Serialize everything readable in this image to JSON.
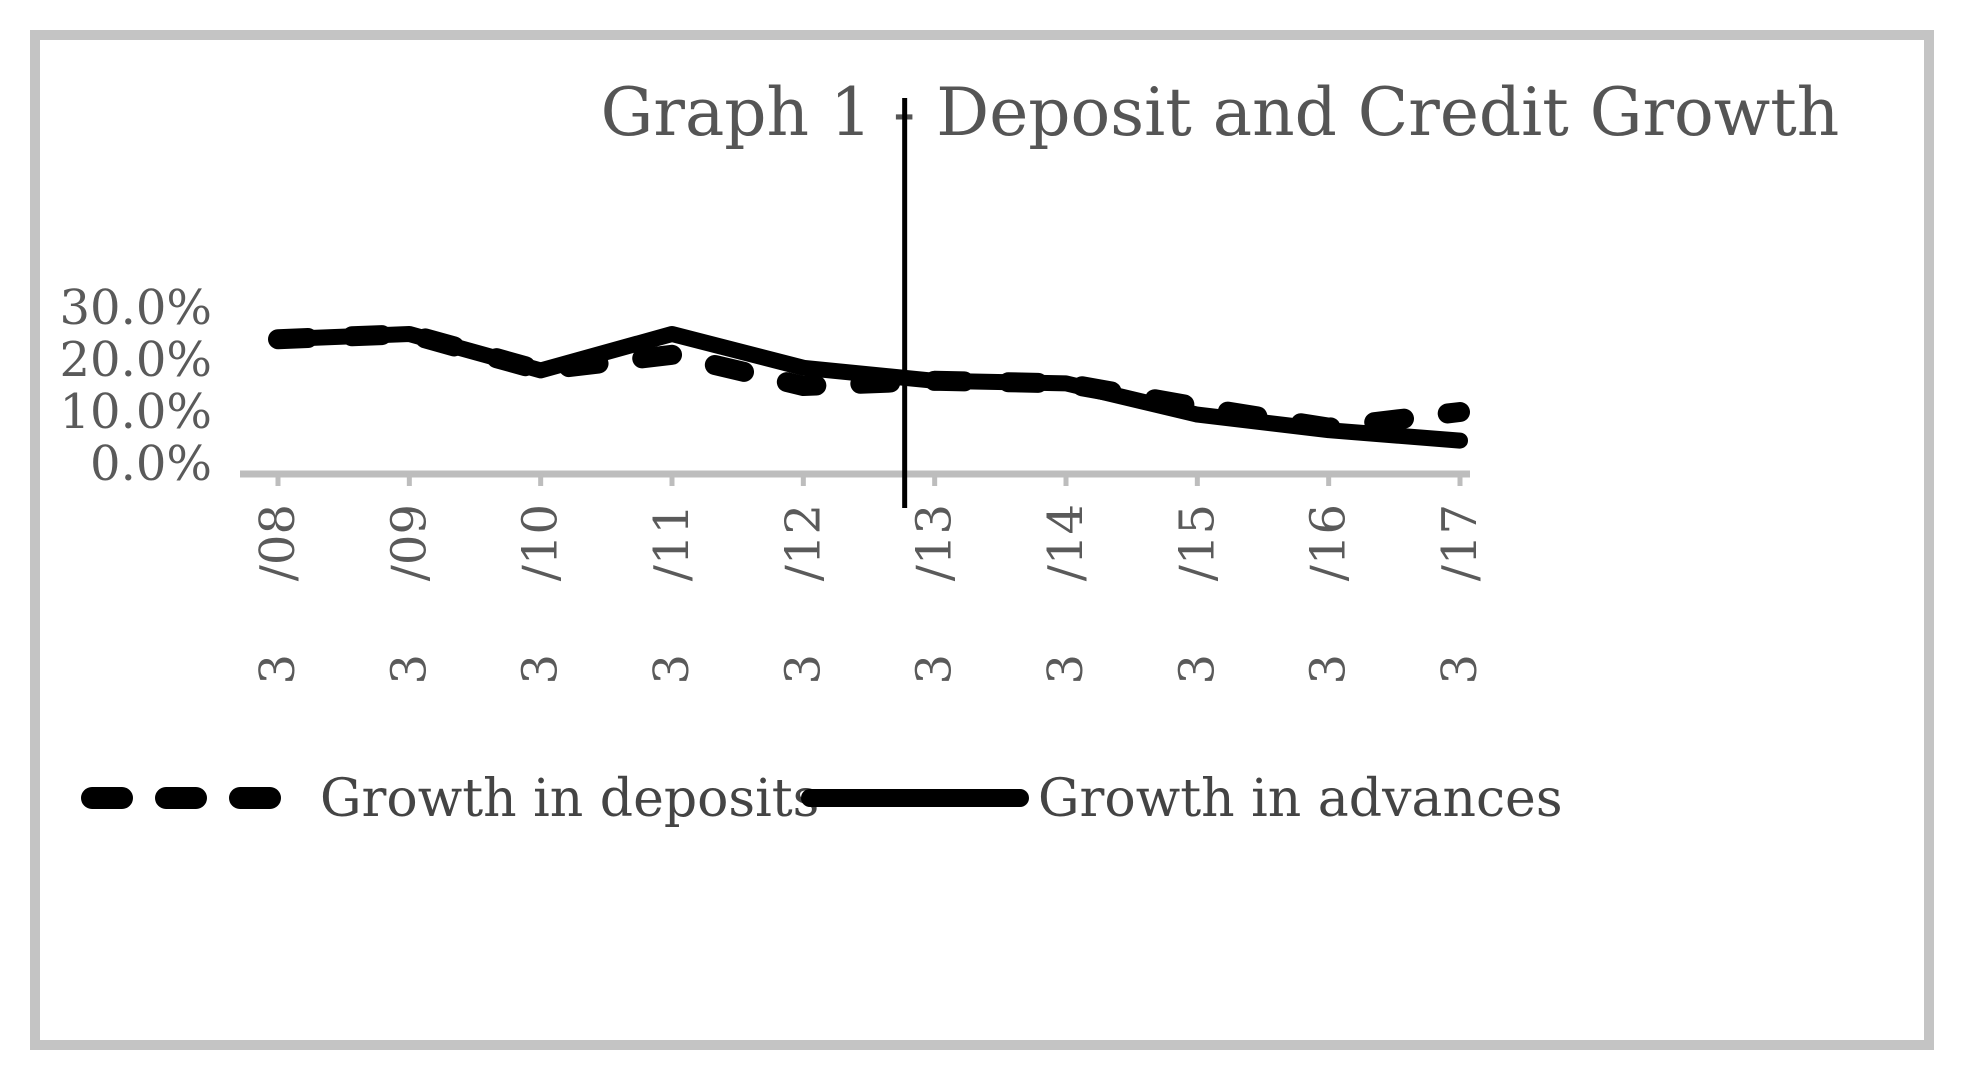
{
  "chart_data": {
    "type": "line",
    "title": "Graph 1 - Deposit and Credit Growth",
    "xlabel": "",
    "ylabel": "",
    "categories": [
      "3/08",
      "3/09",
      "3/10",
      "3/11",
      "3/12",
      "3/13",
      "3/14",
      "3/15",
      "3/16",
      "3/17"
    ],
    "x_tick_lines": [
      [
        "/08",
        "3"
      ],
      [
        "/09",
        "3"
      ],
      [
        "/10",
        "3"
      ],
      [
        "/11",
        "3"
      ],
      [
        "/12",
        "3"
      ],
      [
        "/13",
        "3"
      ],
      [
        "/14",
        "3"
      ],
      [
        "/15",
        "3"
      ],
      [
        "/16",
        "3"
      ],
      [
        "/17",
        "3"
      ]
    ],
    "y_ticks": [
      "0.0%",
      "10.0%",
      "20.0%",
      "30.0%"
    ],
    "y_tick_values": [
      0,
      10,
      20,
      30
    ],
    "ylim": [
      0,
      30
    ],
    "grid": false,
    "legend_position": "bottom",
    "series": [
      {
        "name": "Growth in deposits",
        "style": "dashed",
        "color": "#000000",
        "values": [
          24.0,
          25.0,
          18.0,
          21.0,
          15.0,
          16.0,
          15.5,
          11.0,
          7.0,
          10.0
        ]
      },
      {
        "name": "Growth in advances",
        "style": "solid",
        "color": "#000000",
        "values": [
          24.0,
          25.0,
          18.0,
          25.0,
          18.5,
          16.0,
          15.5,
          9.5,
          6.5,
          4.5
        ]
      }
    ],
    "annotations": [
      {
        "type": "vertical-line",
        "x": "3/13",
        "color": "#000000"
      }
    ]
  }
}
